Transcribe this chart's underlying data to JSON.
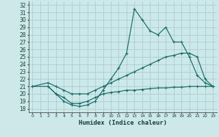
{
  "xlabel": "Humidex (Indice chaleur)",
  "bg_color": "#cce8e8",
  "grid_color": "#aacccc",
  "line_color": "#1a6b6b",
  "xlim": [
    -0.5,
    23.5
  ],
  "ylim": [
    17.5,
    32.5
  ],
  "xticks": [
    0,
    1,
    2,
    3,
    4,
    5,
    6,
    7,
    8,
    9,
    10,
    11,
    12,
    13,
    14,
    15,
    16,
    17,
    18,
    19,
    20,
    21,
    22,
    23
  ],
  "yticks": [
    18,
    19,
    20,
    21,
    22,
    23,
    24,
    25,
    26,
    27,
    28,
    29,
    30,
    31,
    32
  ],
  "line1_x": [
    2,
    3,
    4,
    5,
    6,
    7,
    8,
    9,
    10,
    11,
    12,
    13,
    14,
    15,
    16,
    17,
    18,
    19,
    20,
    21,
    22,
    23
  ],
  "line1_y": [
    21.0,
    20.0,
    19.0,
    18.5,
    18.3,
    18.5,
    19.0,
    20.5,
    22.0,
    23.5,
    25.5,
    31.5,
    30.0,
    28.5,
    28.0,
    29.0,
    27.0,
    27.0,
    25.0,
    22.5,
    21.5,
    21.0
  ],
  "line2_x": [
    0,
    2,
    3,
    4,
    5,
    6,
    7,
    8,
    9,
    10,
    11,
    12,
    13,
    14,
    15,
    16,
    17,
    18,
    19,
    20,
    21,
    22,
    23
  ],
  "line2_y": [
    21.0,
    21.5,
    21.0,
    20.5,
    20.0,
    20.0,
    20.0,
    20.5,
    21.0,
    21.5,
    22.0,
    22.5,
    23.0,
    23.5,
    24.0,
    24.5,
    25.0,
    25.2,
    25.5,
    25.5,
    25.0,
    22.0,
    21.0
  ],
  "line3_x": [
    0,
    2,
    3,
    4,
    5,
    6,
    7,
    8,
    9,
    10,
    11,
    12,
    13,
    14,
    15,
    16,
    17,
    18,
    19,
    20,
    21,
    22,
    23
  ],
  "line3_y": [
    21.0,
    21.0,
    20.0,
    19.5,
    18.7,
    18.7,
    19.0,
    19.5,
    20.0,
    20.2,
    20.3,
    20.5,
    20.5,
    20.6,
    20.7,
    20.8,
    20.8,
    20.9,
    20.9,
    21.0,
    21.0,
    21.0,
    21.0
  ]
}
